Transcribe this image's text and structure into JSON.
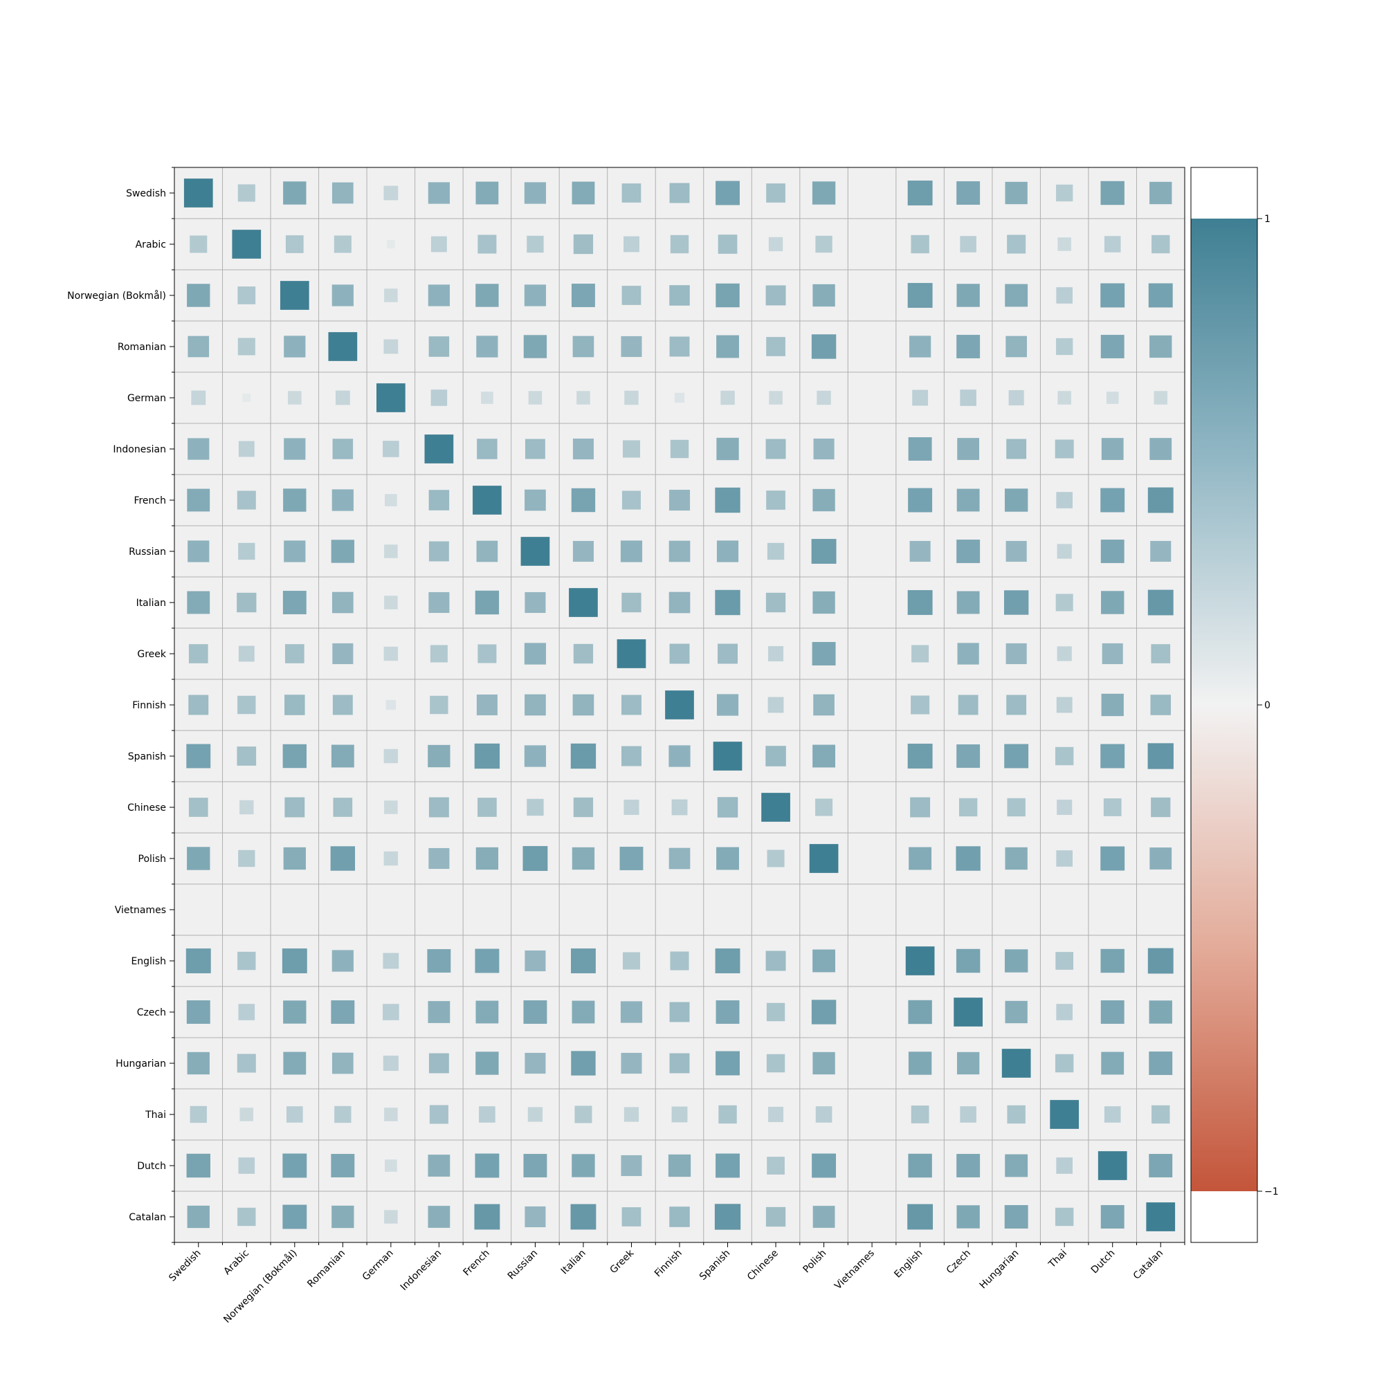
{
  "chart_data": {
    "type": "heatmap",
    "title": "",
    "xlabel": "",
    "ylabel": "",
    "categories": [
      "Swedish",
      "Arabic",
      "Norwegian (Bokmål)",
      "Romanian",
      "German",
      "Indonesian",
      "French",
      "Russian",
      "Italian",
      "Greek",
      "Finnish",
      "Spanish",
      "Chinese",
      "Polish",
      "Vietnames",
      "English",
      "Czech",
      "Hungarian",
      "Thai",
      "Dutch",
      "Catalan"
    ],
    "values": [
      [
        1.0,
        0.36,
        0.64,
        0.54,
        0.25,
        0.56,
        0.62,
        0.56,
        0.62,
        0.44,
        0.48,
        0.7,
        0.44,
        0.64,
        null,
        0.74,
        0.66,
        0.6,
        0.34,
        0.68,
        0.6
      ],
      [
        0.36,
        1.0,
        0.38,
        0.36,
        0.08,
        0.3,
        0.42,
        0.34,
        0.46,
        0.3,
        0.4,
        0.44,
        0.24,
        0.34,
        null,
        0.4,
        0.32,
        0.42,
        0.22,
        0.32,
        0.4
      ],
      [
        0.64,
        0.38,
        1.0,
        0.56,
        0.22,
        0.56,
        0.64,
        0.56,
        0.66,
        0.44,
        0.5,
        0.68,
        0.48,
        0.6,
        null,
        0.74,
        0.64,
        0.62,
        0.32,
        0.7,
        0.7
      ],
      [
        0.54,
        0.36,
        0.56,
        1.0,
        0.25,
        0.5,
        0.56,
        0.64,
        0.54,
        0.52,
        0.48,
        0.62,
        0.44,
        0.72,
        null,
        0.56,
        0.66,
        0.54,
        0.34,
        0.66,
        0.6
      ],
      [
        0.25,
        0.08,
        0.22,
        0.25,
        1.0,
        0.32,
        0.18,
        0.22,
        0.22,
        0.24,
        0.12,
        0.24,
        0.22,
        0.24,
        null,
        0.3,
        0.32,
        0.28,
        0.22,
        0.18,
        0.22
      ],
      [
        0.56,
        0.3,
        0.56,
        0.5,
        0.32,
        1.0,
        0.5,
        0.48,
        0.52,
        0.36,
        0.4,
        0.6,
        0.48,
        0.52,
        null,
        0.66,
        0.58,
        0.48,
        0.42,
        0.58,
        0.58
      ],
      [
        0.62,
        0.42,
        0.64,
        0.56,
        0.18,
        0.5,
        1.0,
        0.54,
        0.68,
        0.42,
        0.52,
        0.76,
        0.44,
        0.6,
        null,
        0.7,
        0.62,
        0.64,
        0.32,
        0.7,
        0.78
      ],
      [
        0.56,
        0.34,
        0.56,
        0.64,
        0.22,
        0.48,
        0.54,
        1.0,
        0.52,
        0.56,
        0.54,
        0.56,
        0.34,
        0.74,
        null,
        0.52,
        0.66,
        0.52,
        0.26,
        0.66,
        0.52
      ],
      [
        0.62,
        0.46,
        0.66,
        0.54,
        0.22,
        0.52,
        0.68,
        0.52,
        1.0,
        0.46,
        0.54,
        0.76,
        0.46,
        0.6,
        null,
        0.74,
        0.62,
        0.72,
        0.36,
        0.64,
        0.78
      ],
      [
        0.44,
        0.3,
        0.44,
        0.52,
        0.24,
        0.36,
        0.42,
        0.56,
        0.46,
        1.0,
        0.48,
        0.48,
        0.28,
        0.66,
        null,
        0.36,
        0.56,
        0.52,
        0.26,
        0.52,
        0.44
      ],
      [
        0.48,
        0.4,
        0.5,
        0.48,
        0.12,
        0.4,
        0.52,
        0.54,
        0.54,
        0.48,
        1.0,
        0.56,
        0.3,
        0.54,
        null,
        0.42,
        0.48,
        0.48,
        0.3,
        0.6,
        0.5
      ],
      [
        0.7,
        0.44,
        0.68,
        0.62,
        0.24,
        0.6,
        0.76,
        0.56,
        0.76,
        0.48,
        0.56,
        1.0,
        0.5,
        0.62,
        null,
        0.74,
        0.66,
        0.7,
        0.4,
        0.7,
        0.8
      ],
      [
        0.44,
        0.24,
        0.48,
        0.44,
        0.22,
        0.48,
        0.44,
        0.34,
        0.46,
        0.28,
        0.3,
        0.5,
        1.0,
        0.36,
        null,
        0.48,
        0.4,
        0.4,
        0.28,
        0.38,
        0.46
      ],
      [
        0.64,
        0.34,
        0.6,
        0.72,
        0.24,
        0.52,
        0.6,
        0.74,
        0.6,
        0.66,
        0.54,
        0.62,
        0.36,
        1.0,
        null,
        0.62,
        0.72,
        0.6,
        0.32,
        0.7,
        0.58
      ],
      [
        null,
        null,
        null,
        null,
        null,
        null,
        null,
        null,
        null,
        null,
        null,
        null,
        null,
        null,
        null,
        null,
        null,
        null,
        null,
        null,
        null
      ],
      [
        0.74,
        0.4,
        0.74,
        0.56,
        0.3,
        0.66,
        0.7,
        0.52,
        0.74,
        0.36,
        0.42,
        0.74,
        0.48,
        0.62,
        null,
        1.0,
        0.68,
        0.64,
        0.38,
        0.68,
        0.78
      ],
      [
        0.66,
        0.32,
        0.64,
        0.66,
        0.32,
        0.58,
        0.62,
        0.66,
        0.62,
        0.56,
        0.48,
        0.66,
        0.4,
        0.72,
        null,
        0.68,
        1.0,
        0.6,
        0.32,
        0.66,
        0.64
      ],
      [
        0.6,
        0.42,
        0.62,
        0.54,
        0.28,
        0.48,
        0.64,
        0.52,
        0.72,
        0.52,
        0.48,
        0.7,
        0.4,
        0.6,
        null,
        0.64,
        0.6,
        1.0,
        0.4,
        0.62,
        0.66
      ],
      [
        0.34,
        0.22,
        0.32,
        0.34,
        0.22,
        0.42,
        0.32,
        0.26,
        0.36,
        0.26,
        0.3,
        0.4,
        0.28,
        0.32,
        null,
        0.38,
        0.32,
        0.4,
        1.0,
        0.32,
        0.4
      ],
      [
        0.68,
        0.32,
        0.7,
        0.66,
        0.18,
        0.58,
        0.7,
        0.66,
        0.64,
        0.52,
        0.6,
        0.7,
        0.38,
        0.7,
        null,
        0.68,
        0.66,
        0.62,
        0.32,
        1.0,
        0.66
      ],
      [
        0.6,
        0.4,
        0.7,
        0.6,
        0.22,
        0.58,
        0.78,
        0.52,
        0.78,
        0.44,
        0.5,
        0.8,
        0.46,
        0.58,
        null,
        0.78,
        0.64,
        0.66,
        0.4,
        0.66,
        1.0
      ]
    ],
    "colorbar": {
      "range": [
        -1,
        1
      ],
      "ticks": [
        1,
        0,
        -1
      ],
      "tick_labels": [
        "1",
        "0",
        "−1"
      ]
    },
    "colors": {
      "negative": "#c3553a",
      "neutral": "#f2f2f2",
      "positive": "#3f7f93",
      "cell_bg": "#f0f0f0",
      "grid": "#b0b0b0"
    },
    "grid": true,
    "legend": "right"
  }
}
